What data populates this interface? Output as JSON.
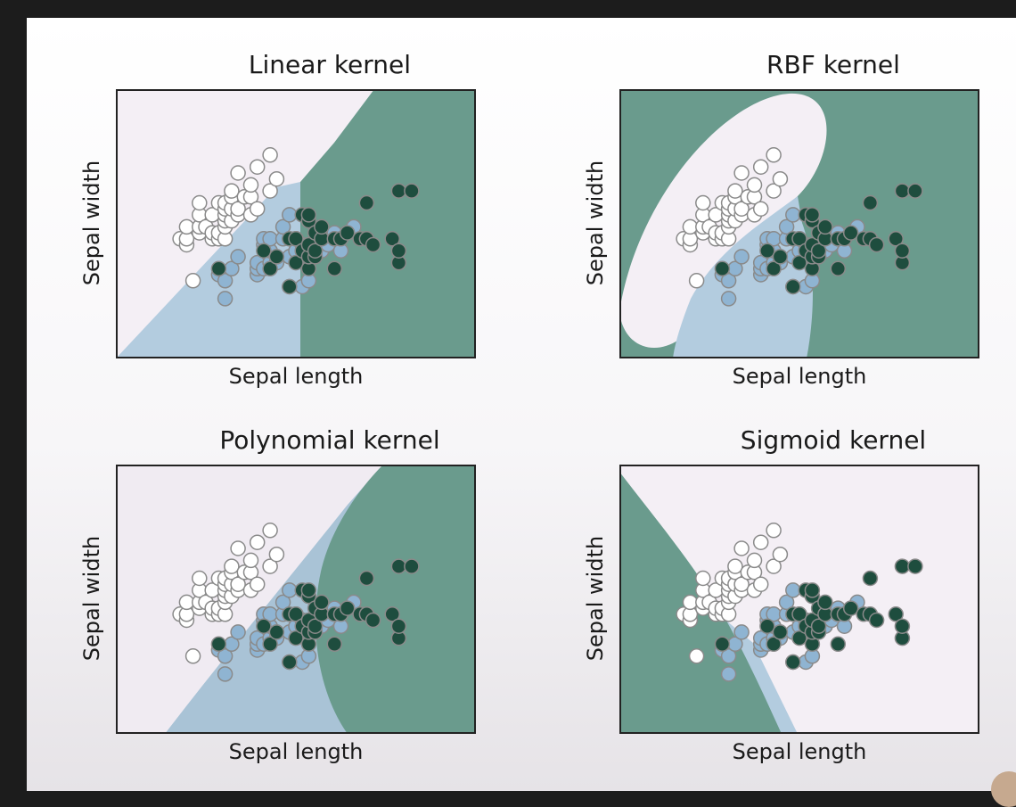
{
  "chart_data": [
    {
      "type": "scatter",
      "title": "Linear kernel",
      "xlabel": "Sepal length",
      "ylabel": "Sepal width",
      "xlim": [
        3.3,
        8.9
      ],
      "ylim": [
        1.0,
        5.5
      ],
      "region_colors": {
        "setosa": "#f4eff5",
        "versicolor": "#b3ccdf",
        "virginica": "#6a9b8d"
      },
      "point_colors": {
        "setosa": "#ffffff",
        "versicolor": "#8fb4d2",
        "virginica": "#1e4d3e"
      },
      "series": [
        {
          "name": "",
          "values": [
            [
              4.3,
              3.0
            ],
            [
              4.4,
              2.9
            ],
            [
              4.4,
              3.0
            ],
            [
              4.4,
              3.2
            ],
            [
              4.5,
              2.3
            ],
            [
              4.6,
              3.1
            ],
            [
              4.6,
              3.2
            ],
            [
              4.6,
              3.4
            ],
            [
              4.6,
              3.6
            ],
            [
              4.7,
              3.2
            ],
            [
              4.8,
              3.0
            ],
            [
              4.8,
              3.1
            ],
            [
              4.8,
              3.4
            ],
            [
              4.9,
              3.0
            ],
            [
              4.9,
              3.1
            ],
            [
              4.9,
              3.6
            ],
            [
              5.0,
              3.0
            ],
            [
              5.0,
              3.2
            ],
            [
              5.0,
              3.3
            ],
            [
              5.0,
              3.4
            ],
            [
              5.0,
              3.5
            ],
            [
              5.0,
              3.6
            ],
            [
              5.1,
              3.3
            ],
            [
              5.1,
              3.5
            ],
            [
              5.1,
              3.7
            ],
            [
              5.1,
              3.8
            ],
            [
              5.2,
              3.4
            ],
            [
              5.2,
              3.5
            ],
            [
              5.2,
              4.1
            ],
            [
              5.3,
              3.7
            ],
            [
              5.4,
              3.4
            ],
            [
              5.4,
              3.7
            ],
            [
              5.4,
              3.9
            ],
            [
              5.5,
              3.5
            ],
            [
              5.5,
              4.2
            ],
            [
              5.7,
              3.8
            ],
            [
              5.7,
              4.4
            ],
            [
              5.8,
              4.0
            ]
          ]
        },
        {
          "name": "",
          "values": [
            [
              4.9,
              2.4
            ],
            [
              5.0,
              2.0
            ],
            [
              5.0,
              2.3
            ],
            [
              5.1,
              2.5
            ],
            [
              5.2,
              2.7
            ],
            [
              5.5,
              2.4
            ],
            [
              5.5,
              2.5
            ],
            [
              5.5,
              2.6
            ],
            [
              5.6,
              2.5
            ],
            [
              5.6,
              2.9
            ],
            [
              5.6,
              3.0
            ],
            [
              5.7,
              2.6
            ],
            [
              5.7,
              2.8
            ],
            [
              5.7,
              3.0
            ],
            [
              5.8,
              2.6
            ],
            [
              5.8,
              2.7
            ],
            [
              5.9,
              3.0
            ],
            [
              5.9,
              3.2
            ],
            [
              6.0,
              2.2
            ],
            [
              6.0,
              2.7
            ],
            [
              6.0,
              3.4
            ],
            [
              6.1,
              2.8
            ],
            [
              6.1,
              3.0
            ],
            [
              6.2,
              2.2
            ],
            [
              6.2,
              2.9
            ],
            [
              6.3,
              2.3
            ],
            [
              6.3,
              3.3
            ],
            [
              6.4,
              2.9
            ],
            [
              6.5,
              2.8
            ],
            [
              6.6,
              2.9
            ],
            [
              6.7,
              3.0
            ],
            [
              6.7,
              3.1
            ],
            [
              6.8,
              2.8
            ],
            [
              6.9,
              3.1
            ],
            [
              7.0,
              3.2
            ]
          ]
        },
        {
          "name": "",
          "values": [
            [
              4.9,
              2.5
            ],
            [
              5.6,
              2.8
            ],
            [
              5.7,
              2.5
            ],
            [
              5.8,
              2.7
            ],
            [
              6.0,
              2.2
            ],
            [
              6.0,
              3.0
            ],
            [
              6.1,
              2.6
            ],
            [
              6.1,
              3.0
            ],
            [
              6.2,
              2.8
            ],
            [
              6.2,
              3.4
            ],
            [
              6.3,
              2.5
            ],
            [
              6.3,
              2.7
            ],
            [
              6.3,
              2.9
            ],
            [
              6.3,
              3.3
            ],
            [
              6.3,
              3.4
            ],
            [
              6.4,
              2.7
            ],
            [
              6.4,
              2.8
            ],
            [
              6.4,
              3.1
            ],
            [
              6.5,
              3.0
            ],
            [
              6.5,
              3.2
            ],
            [
              6.7,
              2.5
            ],
            [
              6.7,
              3.0
            ],
            [
              6.8,
              3.0
            ],
            [
              6.9,
              3.1
            ],
            [
              7.1,
              3.0
            ],
            [
              7.2,
              3.0
            ],
            [
              7.2,
              3.6
            ],
            [
              7.3,
              2.9
            ],
            [
              7.6,
              3.0
            ],
            [
              7.7,
              2.6
            ],
            [
              7.7,
              2.8
            ],
            [
              7.7,
              3.8
            ],
            [
              7.9,
              3.8
            ]
          ]
        }
      ]
    },
    {
      "type": "scatter",
      "title": "RBF kernel",
      "xlabel": "Sepal length",
      "ylabel": "Sepal width",
      "xlim": [
        3.3,
        8.9
      ],
      "ylim": [
        1.0,
        5.5
      ],
      "region_colors": {
        "setosa": "#f4eff5",
        "versicolor": "#b3ccdf",
        "virginica": "#6a9b8d"
      },
      "point_colors": {
        "setosa": "#ffffff",
        "versicolor": "#8fb4d2",
        "virginica": "#1e4d3e"
      },
      "series_ref": 0
    },
    {
      "type": "scatter",
      "title": "Polynomial kernel",
      "xlabel": "Sepal length",
      "ylabel": "Sepal width",
      "xlim": [
        3.3,
        8.9
      ],
      "ylim": [
        1.0,
        5.5
      ],
      "region_colors": {
        "setosa": "#f0ebf2",
        "versicolor": "#a9c3d6",
        "virginica": "#6a9b8d"
      },
      "point_colors": {
        "setosa": "#ffffff",
        "versicolor": "#8fb4d2",
        "virginica": "#1e4d3e"
      },
      "series_ref": 0
    },
    {
      "type": "scatter",
      "title": "Sigmoid kernel",
      "xlabel": "Sepal length",
      "ylabel": "Sepal width",
      "xlim": [
        3.3,
        8.9
      ],
      "ylim": [
        1.0,
        5.5
      ],
      "region_colors": {
        "setosa": "#f4eff5",
        "versicolor": "#b3ccdf",
        "virginica": "#6a9b8d"
      },
      "point_colors": {
        "setosa": "#ffffff",
        "versicolor": "#8fb4d2",
        "virginica": "#1e4d3e"
      },
      "series_ref": 0
    }
  ]
}
